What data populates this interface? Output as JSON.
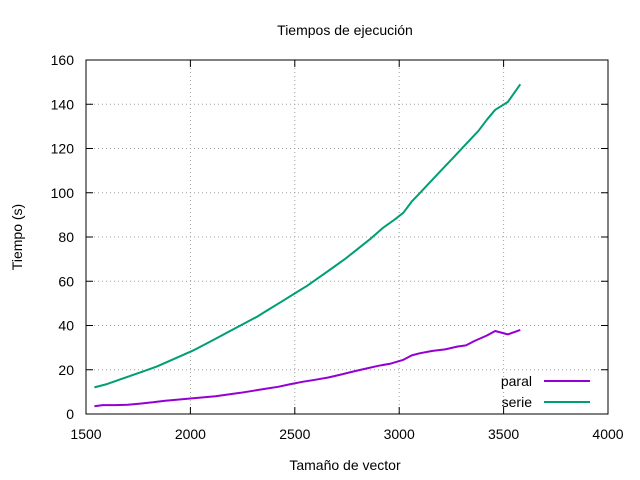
{
  "chart_data": {
    "type": "line",
    "title": "Tiempos de ejecución",
    "xlabel": "Tamaño de vector",
    "ylabel": "Tiempo (s)",
    "xlim": [
      1500,
      4000
    ],
    "ylim": [
      0,
      160
    ],
    "xticks": [
      1500,
      2000,
      2500,
      3000,
      3500,
      4000
    ],
    "yticks": [
      0,
      20,
      40,
      60,
      80,
      100,
      120,
      140,
      160
    ],
    "grid": true,
    "legend_position": "bottom-right",
    "series": [
      {
        "name": "paral",
        "color": "#9400d3",
        "x": [
          1540,
          1580,
          1640,
          1700,
          1760,
          1820,
          1880,
          1940,
          2000,
          2060,
          2120,
          2180,
          2240,
          2300,
          2360,
          2420,
          2480,
          2540,
          2600,
          2660,
          2720,
          2780,
          2840,
          2900,
          2960,
          3020,
          3060,
          3100,
          3160,
          3220,
          3280,
          3320,
          3360,
          3420,
          3460,
          3520,
          3580
        ],
        "y": [
          3.5,
          4,
          4,
          4.2,
          4.7,
          5.3,
          6,
          6.5,
          7,
          7.5,
          8,
          8.8,
          9.6,
          10.5,
          11.4,
          12.3,
          13.5,
          14.6,
          15.5,
          16.5,
          17.8,
          19.2,
          20.5,
          21.8,
          22.8,
          24.5,
          26.5,
          27.5,
          28.5,
          29.2,
          30.5,
          31,
          33,
          35.5,
          37.5,
          36,
          38
        ]
      },
      {
        "name": "serie",
        "color": "#009e73",
        "x": [
          1540,
          1600,
          1660,
          1720,
          1780,
          1840,
          1900,
          1960,
          2020,
          2080,
          2140,
          2200,
          2260,
          2320,
          2380,
          2440,
          2500,
          2560,
          2620,
          2680,
          2740,
          2800,
          2860,
          2920,
          2980,
          3020,
          3060,
          3100,
          3140,
          3200,
          3260,
          3320,
          3380,
          3420,
          3460,
          3520,
          3580
        ],
        "y": [
          12,
          13.5,
          15.5,
          17.5,
          19.5,
          21.5,
          24,
          26.5,
          29,
          32,
          35,
          38,
          41,
          44,
          47.5,
          51,
          54.5,
          58,
          62,
          66,
          70,
          74.5,
          79,
          84,
          88,
          91,
          96,
          100,
          104,
          110,
          116,
          122,
          128,
          133,
          137.5,
          141,
          149
        ]
      }
    ]
  }
}
